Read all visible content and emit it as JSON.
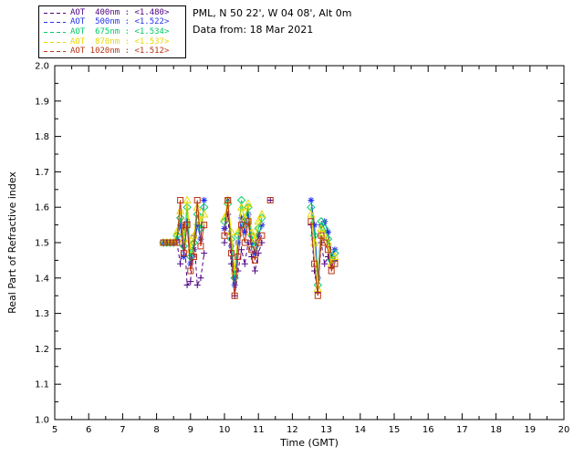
{
  "header": {
    "location": "PML, N 50 22', W 04 08', Alt 0m",
    "data_from": "Data from: 18 Mar 2021"
  },
  "legend": {
    "position": "top-left",
    "items": [
      {
        "label": "AOT  400nm : <1.480>",
        "mean": 1.48,
        "color": "#4b0082",
        "linestyle": "dashed"
      },
      {
        "label": "AOT  500nm : <1.522>",
        "mean": 1.522,
        "color": "#2233ee",
        "linestyle": "dashed"
      },
      {
        "label": "AOT  675nm : <1.534>",
        "mean": 1.534,
        "color": "#00cc66",
        "linestyle": "dashed"
      },
      {
        "label": "AOT  870nm : <1.537>",
        "mean": 1.537,
        "color": "#e8d800",
        "linestyle": "dashed"
      },
      {
        "label": "AOT 1020nm : <1.512>",
        "mean": 1.512,
        "color": "#bb3311",
        "linestyle": "dashed"
      }
    ]
  },
  "chart_data": {
    "type": "line",
    "title": "",
    "xlabel": "Time (GMT)",
    "ylabel": "Real Part of Refractive index",
    "xlim": [
      5,
      20
    ],
    "ylim": [
      1.0,
      2.0
    ],
    "xticks": [
      5,
      6,
      7,
      8,
      9,
      10,
      11,
      12,
      13,
      14,
      15,
      16,
      17,
      18,
      19,
      20
    ],
    "yticks": [
      1.0,
      1.1,
      1.2,
      1.3,
      1.4,
      1.5,
      1.6,
      1.7,
      1.8,
      1.9,
      2.0
    ],
    "x_minor_step": 0.5,
    "y_minor_step": 0.05,
    "grid": false,
    "legend_position": "top-left",
    "series": [
      {
        "name": "AOT 400nm",
        "wavelength_nm": 400,
        "mean": 1.48,
        "color": "#4b0082",
        "marker": "plus",
        "linestyle": "dashed",
        "points": [
          [
            8.2,
            1.5
          ],
          [
            8.3,
            1.5
          ],
          [
            8.4,
            1.5
          ],
          [
            8.5,
            1.5
          ],
          [
            8.6,
            1.5
          ],
          [
            8.7,
            1.44
          ],
          [
            8.8,
            1.55
          ],
          [
            8.9,
            1.38
          ],
          [
            9.0,
            1.39
          ],
          [
            9.1,
            1.52
          ],
          [
            9.2,
            1.38
          ],
          [
            9.3,
            1.4
          ],
          [
            9.4,
            1.47
          ],
          [
            10.0,
            1.5
          ],
          [
            10.1,
            1.58
          ],
          [
            10.2,
            1.44
          ],
          [
            10.3,
            1.35
          ],
          [
            10.4,
            1.42
          ],
          [
            10.5,
            1.48
          ],
          [
            10.6,
            1.44
          ],
          [
            10.7,
            1.5
          ],
          [
            10.8,
            1.46
          ],
          [
            10.9,
            1.42
          ],
          [
            11.0,
            1.47
          ],
          [
            11.1,
            1.5
          ],
          [
            11.35,
            1.62
          ],
          [
            12.55,
            1.55
          ],
          [
            12.65,
            1.42
          ],
          [
            12.75,
            1.36
          ],
          [
            12.85,
            1.5
          ],
          [
            12.95,
            1.44
          ],
          [
            13.05,
            1.46
          ],
          [
            13.15,
            1.43
          ],
          [
            13.25,
            1.45
          ]
        ]
      },
      {
        "name": "AOT 500nm",
        "wavelength_nm": 500,
        "mean": 1.522,
        "color": "#2233ee",
        "marker": "asterisk",
        "linestyle": "solid",
        "points": [
          [
            8.2,
            1.5
          ],
          [
            8.3,
            1.5
          ],
          [
            8.4,
            1.5
          ],
          [
            8.5,
            1.5
          ],
          [
            8.6,
            1.51
          ],
          [
            8.7,
            1.55
          ],
          [
            8.8,
            1.46
          ],
          [
            8.9,
            1.56
          ],
          [
            9.0,
            1.44
          ],
          [
            9.1,
            1.48
          ],
          [
            9.2,
            1.55
          ],
          [
            9.3,
            1.51
          ],
          [
            9.4,
            1.62
          ],
          [
            10.0,
            1.54
          ],
          [
            10.1,
            1.62
          ],
          [
            10.2,
            1.49
          ],
          [
            10.3,
            1.38
          ],
          [
            10.4,
            1.5
          ],
          [
            10.5,
            1.57
          ],
          [
            10.6,
            1.53
          ],
          [
            10.7,
            1.58
          ],
          [
            10.8,
            1.5
          ],
          [
            10.9,
            1.47
          ],
          [
            11.0,
            1.52
          ],
          [
            11.1,
            1.55
          ],
          [
            12.55,
            1.62
          ],
          [
            12.65,
            1.55
          ],
          [
            12.75,
            1.4
          ],
          [
            12.85,
            1.55
          ],
          [
            12.95,
            1.56
          ],
          [
            13.05,
            1.53
          ],
          [
            13.15,
            1.46
          ],
          [
            13.25,
            1.48
          ]
        ]
      },
      {
        "name": "AOT 675nm",
        "wavelength_nm": 675,
        "mean": 1.534,
        "color": "#00cc66",
        "marker": "diamond",
        "linestyle": "solid",
        "points": [
          [
            8.2,
            1.5
          ],
          [
            8.3,
            1.5
          ],
          [
            8.4,
            1.5
          ],
          [
            8.5,
            1.5
          ],
          [
            8.6,
            1.52
          ],
          [
            8.7,
            1.57
          ],
          [
            8.8,
            1.49
          ],
          [
            8.9,
            1.6
          ],
          [
            9.0,
            1.46
          ],
          [
            9.1,
            1.5
          ],
          [
            9.2,
            1.58
          ],
          [
            9.3,
            1.54
          ],
          [
            9.4,
            1.6
          ],
          [
            10.0,
            1.56
          ],
          [
            10.1,
            1.61
          ],
          [
            10.2,
            1.51
          ],
          [
            10.3,
            1.4
          ],
          [
            10.4,
            1.52
          ],
          [
            10.5,
            1.62
          ],
          [
            10.6,
            1.55
          ],
          [
            10.7,
            1.6
          ],
          [
            10.8,
            1.52
          ],
          [
            10.9,
            1.49
          ],
          [
            11.0,
            1.54
          ],
          [
            11.1,
            1.57
          ],
          [
            12.55,
            1.6
          ],
          [
            12.65,
            1.52
          ],
          [
            12.75,
            1.38
          ],
          [
            12.85,
            1.56
          ],
          [
            12.95,
            1.54
          ],
          [
            13.05,
            1.51
          ],
          [
            13.15,
            1.45
          ],
          [
            13.25,
            1.47
          ]
        ]
      },
      {
        "name": "AOT 870nm",
        "wavelength_nm": 870,
        "mean": 1.537,
        "color": "#e8d800",
        "marker": "triangle",
        "linestyle": "solid",
        "points": [
          [
            8.2,
            1.5
          ],
          [
            8.3,
            1.5
          ],
          [
            8.4,
            1.5
          ],
          [
            8.5,
            1.5
          ],
          [
            8.6,
            1.53
          ],
          [
            8.7,
            1.59
          ],
          [
            8.8,
            1.51
          ],
          [
            8.9,
            1.62
          ],
          [
            9.0,
            1.48
          ],
          [
            9.1,
            1.52
          ],
          [
            9.2,
            1.6
          ],
          [
            9.3,
            1.56
          ],
          [
            9.4,
            1.58
          ],
          [
            10.0,
            1.57
          ],
          [
            10.1,
            1.62
          ],
          [
            10.2,
            1.53
          ],
          [
            10.3,
            1.42
          ],
          [
            10.4,
            1.53
          ],
          [
            10.5,
            1.6
          ],
          [
            10.6,
            1.57
          ],
          [
            10.7,
            1.61
          ],
          [
            10.8,
            1.53
          ],
          [
            10.9,
            1.51
          ],
          [
            11.0,
            1.56
          ],
          [
            11.1,
            1.58
          ],
          [
            12.55,
            1.58
          ],
          [
            12.65,
            1.5
          ],
          [
            12.75,
            1.37
          ],
          [
            12.85,
            1.54
          ],
          [
            12.95,
            1.52
          ],
          [
            13.05,
            1.5
          ],
          [
            13.15,
            1.44
          ],
          [
            13.25,
            1.46
          ]
        ]
      },
      {
        "name": "AOT 1020nm",
        "wavelength_nm": 1020,
        "mean": 1.512,
        "color": "#bb3311",
        "marker": "square",
        "linestyle": "solid",
        "points": [
          [
            8.2,
            1.5
          ],
          [
            8.3,
            1.5
          ],
          [
            8.4,
            1.5
          ],
          [
            8.5,
            1.5
          ],
          [
            8.6,
            1.5
          ],
          [
            8.7,
            1.62
          ],
          [
            8.8,
            1.47
          ],
          [
            8.9,
            1.55
          ],
          [
            9.0,
            1.42
          ],
          [
            9.1,
            1.46
          ],
          [
            9.2,
            1.62
          ],
          [
            9.3,
            1.49
          ],
          [
            9.4,
            1.55
          ],
          [
            10.0,
            1.52
          ],
          [
            10.1,
            1.62
          ],
          [
            10.2,
            1.47
          ],
          [
            10.3,
            1.35
          ],
          [
            10.4,
            1.46
          ],
          [
            10.5,
            1.55
          ],
          [
            10.6,
            1.5
          ],
          [
            10.7,
            1.56
          ],
          [
            10.8,
            1.48
          ],
          [
            10.9,
            1.45
          ],
          [
            11.0,
            1.5
          ],
          [
            11.1,
            1.52
          ],
          [
            11.35,
            1.62
          ],
          [
            12.55,
            1.56
          ],
          [
            12.65,
            1.44
          ],
          [
            12.75,
            1.35
          ],
          [
            12.85,
            1.52
          ],
          [
            12.95,
            1.5
          ],
          [
            13.05,
            1.48
          ],
          [
            13.15,
            1.42
          ],
          [
            13.25,
            1.44
          ]
        ]
      }
    ]
  }
}
